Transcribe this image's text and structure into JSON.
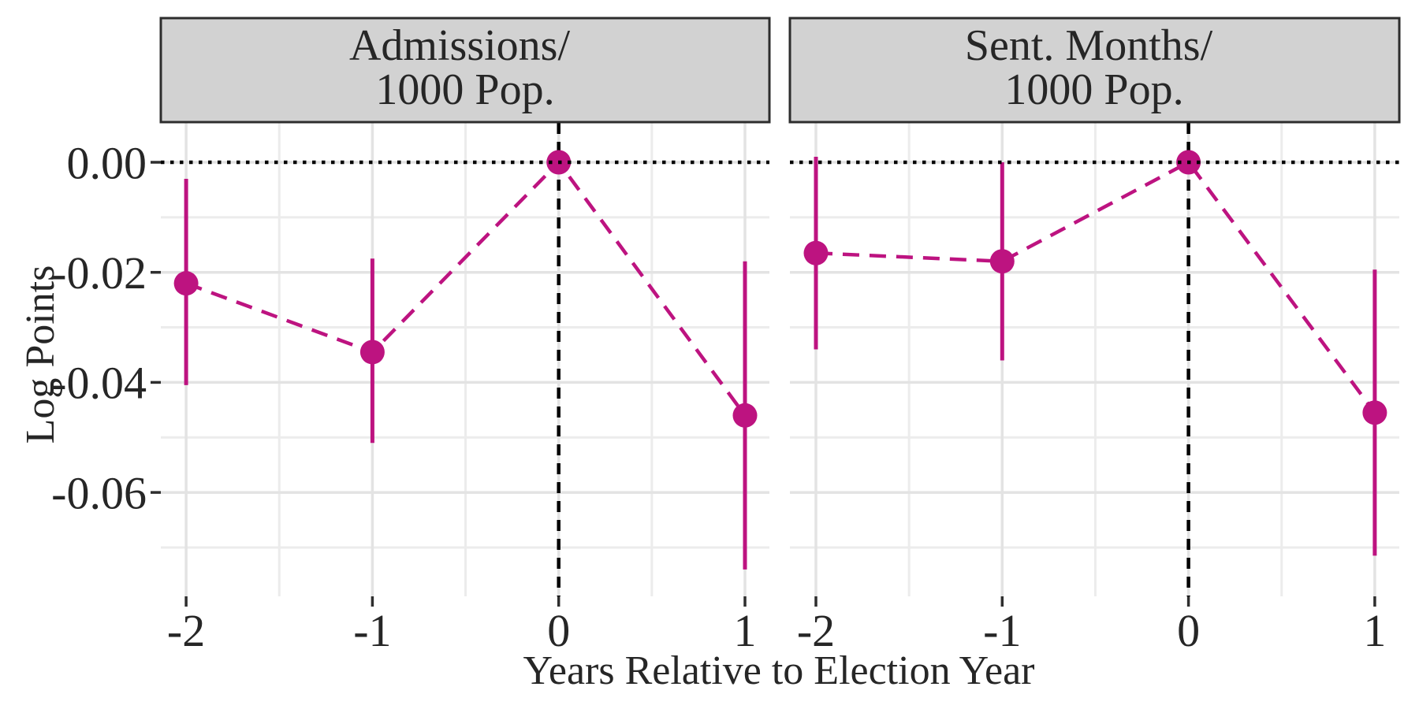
{
  "chart_data": {
    "type": "pointrange-line",
    "title": "",
    "xlabel": "Years Relative to Election Year",
    "ylabel": "Log Points",
    "legend": "none",
    "x_axis": {
      "ticks": [
        -2,
        -1,
        0,
        1
      ],
      "tick_labels": [
        "-2",
        "-1",
        "0",
        "1"
      ],
      "minor_breaks": [
        -1.5,
        -0.5,
        0.5
      ],
      "range": [
        -2.14,
        1.13
      ]
    },
    "y_axis": {
      "ticks": [
        0,
        -0.02,
        -0.04,
        -0.06
      ],
      "tick_labels": [
        "0.00",
        "-0.02",
        "-0.04",
        "-0.06"
      ],
      "minor_breaks": [
        -0.01,
        -0.03,
        -0.05,
        -0.07
      ],
      "range": [
        0.0072,
        -0.0789
      ]
    },
    "reference_lines": {
      "horizontal_y": 0,
      "horizontal_style": "dotted",
      "vertical_x": 0,
      "vertical_style": "dashed"
    },
    "panels": [
      {
        "id": "admissions",
        "title_lines": [
          "Admissions/",
          "1000 Pop."
        ],
        "points": [
          {
            "x": -2,
            "estimate": -0.022,
            "ci_low": -0.0405,
            "ci_high": -0.003
          },
          {
            "x": -1,
            "estimate": -0.0345,
            "ci_low": -0.051,
            "ci_high": -0.0175
          },
          {
            "x": 0,
            "estimate": 0,
            "ci_low": 0,
            "ci_high": 0
          },
          {
            "x": 1,
            "estimate": -0.046,
            "ci_low": -0.074,
            "ci_high": -0.018
          }
        ]
      },
      {
        "id": "sent-months",
        "title_lines": [
          "Sent. Months/",
          "1000 Pop."
        ],
        "points": [
          {
            "x": -2,
            "estimate": -0.0165,
            "ci_low": -0.034,
            "ci_high": 0.001
          },
          {
            "x": -1,
            "estimate": -0.018,
            "ci_low": -0.036,
            "ci_high": 0.0
          },
          {
            "x": 0,
            "estimate": 0,
            "ci_low": 0,
            "ci_high": 0
          },
          {
            "x": 1,
            "estimate": -0.0455,
            "ci_low": -0.0715,
            "ci_high": -0.0195
          }
        ]
      }
    ]
  },
  "colors": {
    "accent": "#BD1380",
    "grid_major": "#E3E3E3",
    "grid_minor": "#ECECEC",
    "strip_fill": "#D2D2D2",
    "strip_border": "#2D2D2D",
    "reference_line": "#000000",
    "tick_mark": "#2E2E2E",
    "text": "#262626",
    "background": "#FFFFFF"
  }
}
